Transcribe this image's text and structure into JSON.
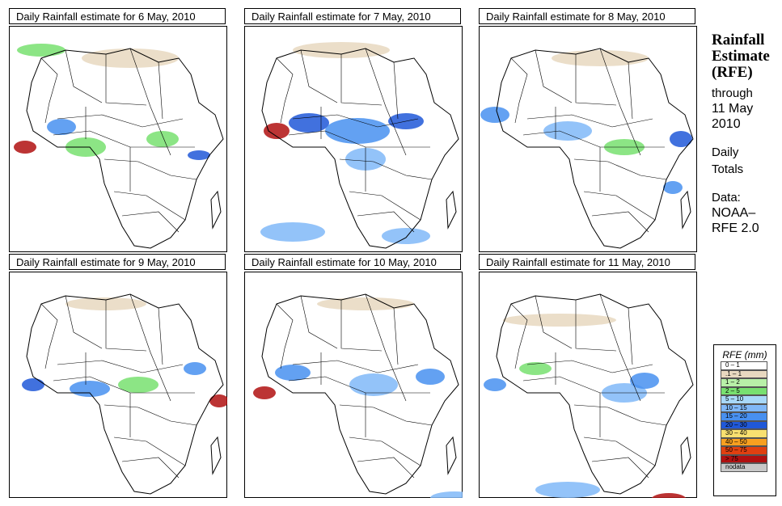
{
  "panels": [
    {
      "title": "Daily Rainfall estimate for  6 May, 2010"
    },
    {
      "title": "Daily Rainfall estimate for  7 May, 2010"
    },
    {
      "title": "Daily Rainfall estimate for  8 May, 2010"
    },
    {
      "title": "Daily Rainfall estimate for  9 May, 2010"
    },
    {
      "title": "Daily Rainfall estimate for  10 May, 2010"
    },
    {
      "title": "Daily Rainfall estimate for  11 May, 2010"
    }
  ],
  "side": {
    "heading1": "Rainfall",
    "heading2": "Estimate",
    "heading3": "(RFE)",
    "through": "through",
    "date1": "11 May",
    "date2": "2010",
    "daily": "Daily",
    "totals": "Totals",
    "data_label": "Data:",
    "source1": "NOAA–",
    "source2": "RFE 2.0"
  },
  "legend": {
    "title": "RFE (mm)",
    "items": [
      {
        "label": "0 – 1",
        "color": "#ffffff"
      },
      {
        "label": ".1 – 1",
        "color": "#e8d8c0"
      },
      {
        "label": "1 – 2",
        "color": "#b8f0a8"
      },
      {
        "label": "2 – 5",
        "color": "#78e070"
      },
      {
        "label": "5 – 10",
        "color": "#a8d8f8"
      },
      {
        "label": "10 – 15",
        "color": "#80b8f8"
      },
      {
        "label": "15 – 20",
        "color": "#4890f0"
      },
      {
        "label": "20 – 30",
        "color": "#2058d8"
      },
      {
        "label": "30 – 40",
        "color": "#f8e070"
      },
      {
        "label": "40 – 50",
        "color": "#f8a020"
      },
      {
        "label": "50 – 75",
        "color": "#e04010"
      },
      {
        "label": "> 75",
        "color": "#b01010"
      },
      {
        "label": "nodata",
        "color": "#c8c8c8"
      }
    ]
  }
}
